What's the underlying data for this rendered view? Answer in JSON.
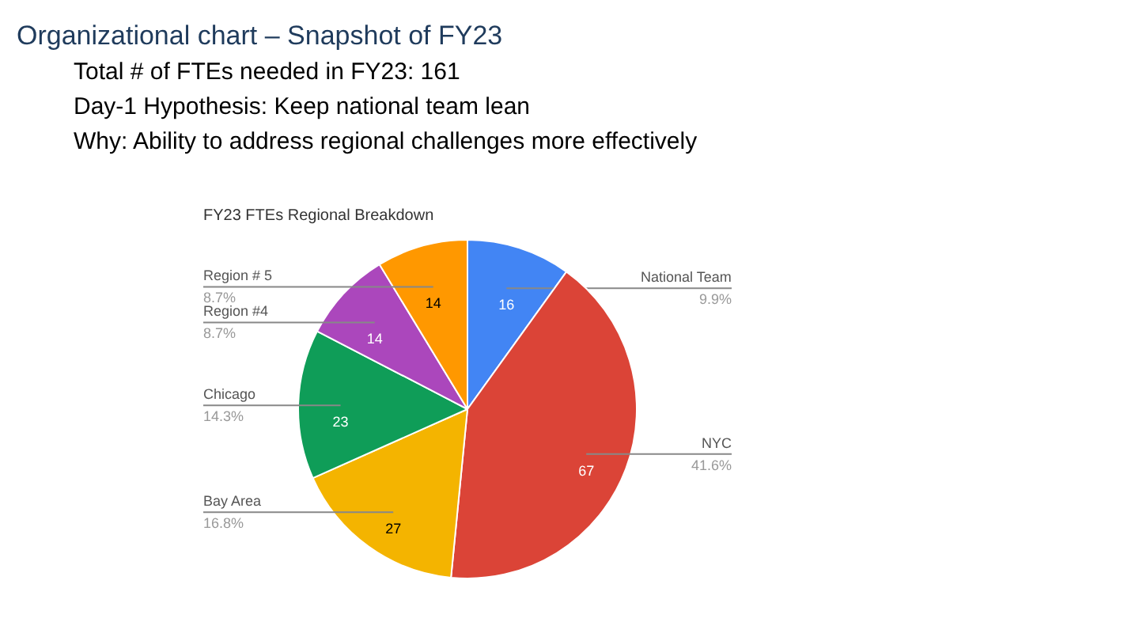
{
  "chart_data": {
    "type": "pie",
    "title": "Organizational chart – Snapshot of FY23",
    "subtitle": "FY23 FTEs Regional Breakdown",
    "annotations": [
      "Total # of FTEs needed in FY23: 161",
      "Day-1 Hypothesis: Keep national team lean",
      "Why: Ability to address regional challenges more effectively"
    ],
    "categories": [
      "National Team\n9.9%",
      "NYC\n41.6%",
      "Bay Area\n16.8%",
      "Chicago\n14.3%",
      "Region #4\n8.7%",
      "Region # 5\n8.7%"
    ],
    "values": [
      16,
      67,
      27,
      23,
      14,
      14
    ],
    "data_labels": true,
    "colors": [
      "#4285f4",
      "#db4437",
      "#f4b400",
      "#0f9d58",
      "#ab47bc",
      "#ff9800"
    ]
  }
}
